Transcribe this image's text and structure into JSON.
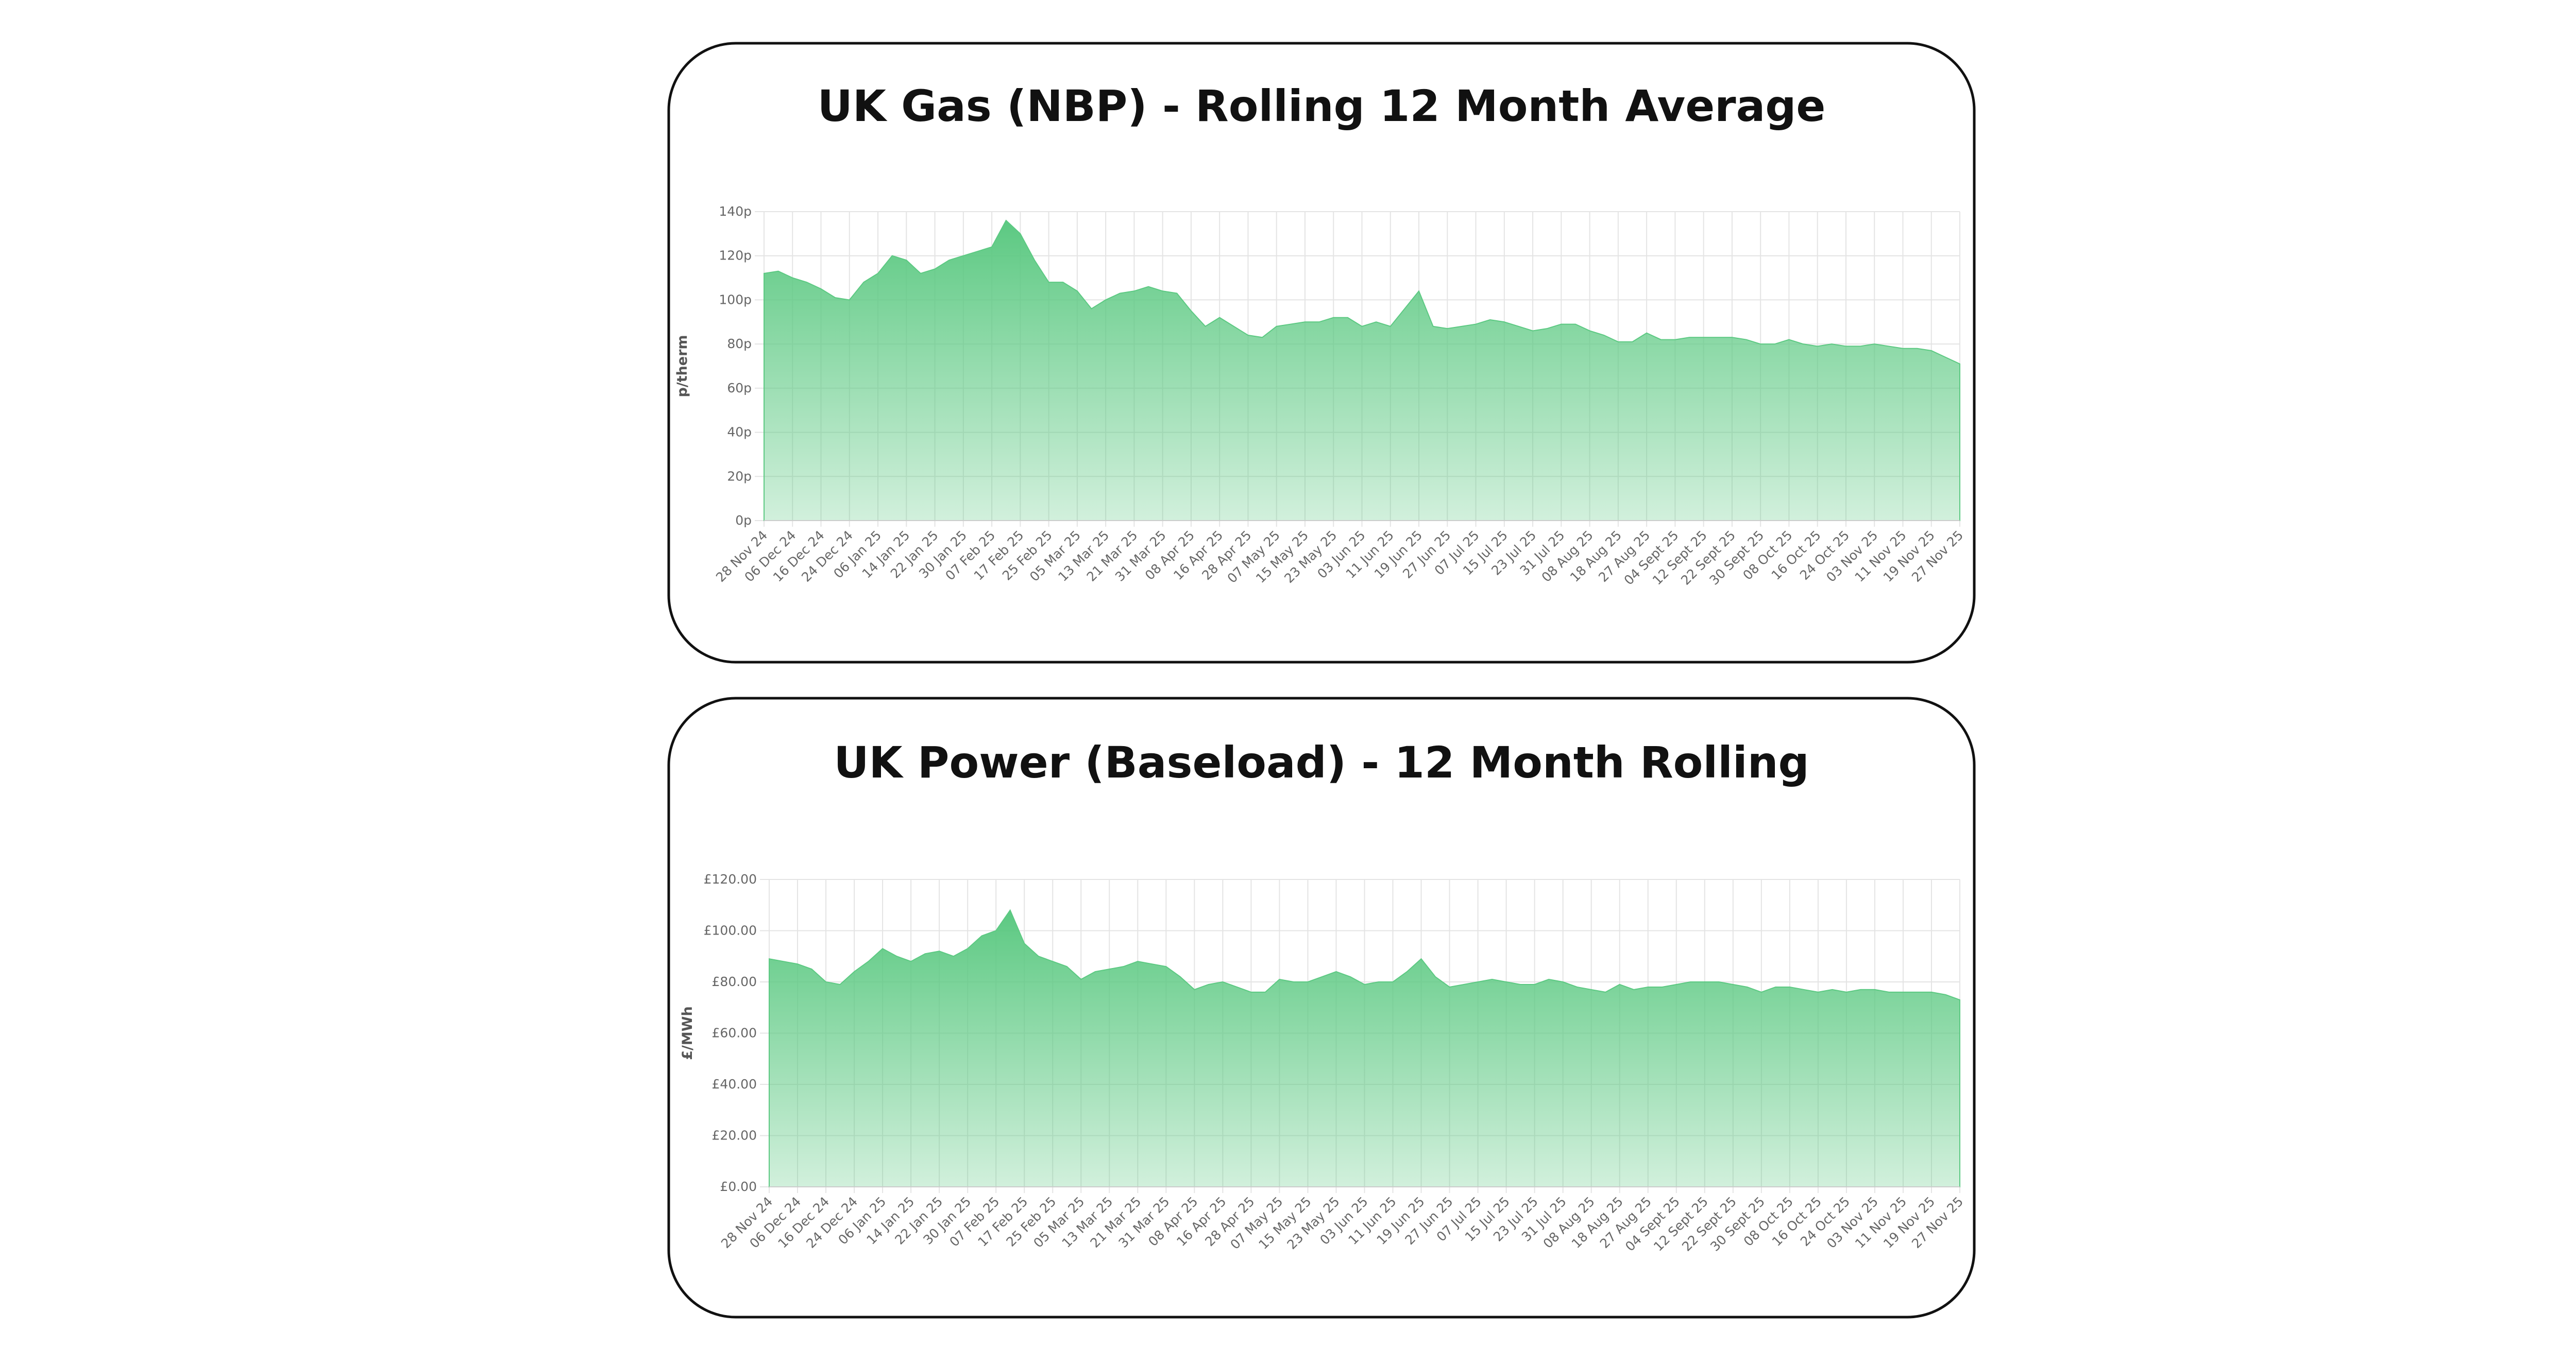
{
  "chart_data": [
    {
      "type": "area",
      "title": "UK Gas (NBP) - Rolling 12 Month Average",
      "y_label": "p/therm",
      "color": "#5cc982",
      "grid": true,
      "categories": [
        "28 Nov 24",
        null,
        "06 Dec 24",
        null,
        "16 Dec 24",
        null,
        "24 Dec 24",
        null,
        "06 Jan 25",
        null,
        "14 Jan 25",
        null,
        "22 Jan 25",
        null,
        "30 Jan 25",
        null,
        "07 Feb 25",
        null,
        "17 Feb 25",
        null,
        "25 Feb 25",
        null,
        "05 Mar 25",
        null,
        "13 Mar 25",
        null,
        "21 Mar 25",
        null,
        "31 Mar 25",
        null,
        "08 Apr 25",
        null,
        "16 Apr 25",
        null,
        "28 Apr 25",
        null,
        "07 May 25",
        null,
        "15 May 25",
        null,
        "23 May 25",
        null,
        "03 Jun 25",
        null,
        "11 Jun 25",
        null,
        "19 Jun 25",
        null,
        "27 Jun 25",
        null,
        "07 Jul 25",
        null,
        "15 Jul 25",
        null,
        "23 Jul 25",
        null,
        "31 Jul 25",
        null,
        "08 Aug 25",
        null,
        "18 Aug 25",
        null,
        "27 Aug 25",
        null,
        "04 Sept 25",
        null,
        "12 Sept 25",
        null,
        "22 Sept 25",
        null,
        "30 Sept 25",
        null,
        "08 Oct 25",
        null,
        "16 Oct 25",
        null,
        "24 Oct 25",
        null,
        "03 Nov 25",
        null,
        "11 Nov 25",
        null,
        "19 Nov 25",
        null,
        "27 Nov 25"
      ],
      "values": [
        112,
        113,
        110,
        108,
        105,
        101,
        100,
        108,
        112,
        120,
        118,
        112,
        114,
        118,
        120,
        122,
        124,
        136,
        130,
        118,
        108,
        108,
        104,
        96,
        100,
        103,
        104,
        106,
        104,
        103,
        95,
        88,
        92,
        88,
        84,
        83,
        88,
        89,
        90,
        90,
        92,
        92,
        88,
        90,
        88,
        96,
        104,
        88,
        87,
        88,
        89,
        91,
        90,
        88,
        86,
        87,
        89,
        89,
        86,
        84,
        81,
        81,
        85,
        82,
        82,
        83,
        83,
        83,
        83,
        82,
        80,
        80,
        82,
        80,
        79,
        80,
        79,
        79,
        80,
        79,
        78,
        78,
        77,
        74,
        71
      ],
      "ylim": [
        0,
        140
      ],
      "yticks": [
        {
          "value": 0,
          "label": "0p"
        },
        {
          "value": 20,
          "label": "20p"
        },
        {
          "value": 40,
          "label": "40p"
        },
        {
          "value": 60,
          "label": "60p"
        },
        {
          "value": 80,
          "label": "80p"
        },
        {
          "value": 100,
          "label": "100p"
        },
        {
          "value": 120,
          "label": "120p"
        },
        {
          "value": 140,
          "label": "140p"
        }
      ]
    },
    {
      "type": "area",
      "title": "UK Power (Baseload) - 12 Month Rolling",
      "y_label": "£/MWh",
      "color": "#5cc982",
      "grid": true,
      "categories": [
        "28 Nov 24",
        null,
        "06 Dec 24",
        null,
        "16 Dec 24",
        null,
        "24 Dec 24",
        null,
        "06 Jan 25",
        null,
        "14 Jan 25",
        null,
        "22 Jan 25",
        null,
        "30 Jan 25",
        null,
        "07 Feb 25",
        null,
        "17 Feb 25",
        null,
        "25 Feb 25",
        null,
        "05 Mar 25",
        null,
        "13 Mar 25",
        null,
        "21 Mar 25",
        null,
        "31 Mar 25",
        null,
        "08 Apr 25",
        null,
        "16 Apr 25",
        null,
        "28 Apr 25",
        null,
        "07 May 25",
        null,
        "15 May 25",
        null,
        "23 May 25",
        null,
        "03 Jun 25",
        null,
        "11 Jun 25",
        null,
        "19 Jun 25",
        null,
        "27 Jun 25",
        null,
        "07 Jul 25",
        null,
        "15 Jul 25",
        null,
        "23 Jul 25",
        null,
        "31 Jul 25",
        null,
        "08 Aug 25",
        null,
        "18 Aug 25",
        null,
        "27 Aug 25",
        null,
        "04 Sept 25",
        null,
        "12 Sept 25",
        null,
        "22 Sept 25",
        null,
        "30 Sept 25",
        null,
        "08 Oct 25",
        null,
        "16 Oct 25",
        null,
        "24 Oct 25",
        null,
        "03 Nov 25",
        null,
        "11 Nov 25",
        null,
        "19 Nov 25",
        null,
        "27 Nov 25"
      ],
      "values": [
        89,
        88,
        87,
        85,
        80,
        79,
        84,
        88,
        93,
        90,
        88,
        91,
        92,
        90,
        93,
        98,
        100,
        108,
        95,
        90,
        88,
        86,
        81,
        84,
        85,
        86,
        88,
        87,
        86,
        82,
        77,
        79,
        80,
        78,
        76,
        76,
        81,
        80,
        80,
        82,
        84,
        82,
        79,
        80,
        80,
        84,
        89,
        82,
        78,
        79,
        80,
        81,
        80,
        79,
        79,
        81,
        80,
        78,
        77,
        76,
        79,
        77,
        78,
        78,
        79,
        80,
        80,
        80,
        79,
        78,
        76,
        78,
        78,
        77,
        76,
        77,
        76,
        77,
        77,
        76,
        76,
        76,
        76,
        75,
        73
      ],
      "ylim": [
        0,
        120
      ],
      "yticks": [
        {
          "value": 0,
          "label": "£0.00"
        },
        {
          "value": 20,
          "label": "£20.00"
        },
        {
          "value": 40,
          "label": "£40.00"
        },
        {
          "value": 60,
          "label": "£60.00"
        },
        {
          "value": 80,
          "label": "£80.00"
        },
        {
          "value": 100,
          "label": "£100.00"
        },
        {
          "value": 120,
          "label": "£120.00"
        }
      ]
    }
  ]
}
